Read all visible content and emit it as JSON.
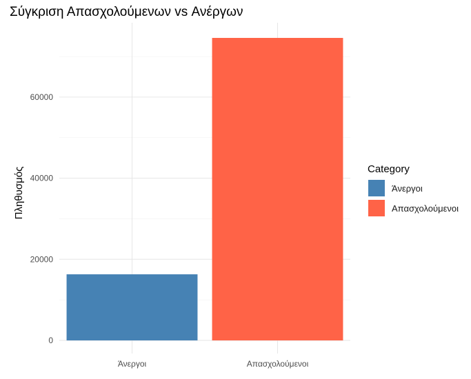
{
  "chart_data": {
    "type": "bar",
    "title": "Σύγκριση Απασχολούμενων vs Ανέργων",
    "xlabel": "",
    "ylabel": "Πληθυσμός",
    "categories": [
      "Άνεργοι",
      "Απασχολούμενοι"
    ],
    "values": [
      16300,
      74600
    ],
    "colors": [
      "#4682B4",
      "#FF6347"
    ],
    "ylim": [
      0,
      78000
    ],
    "yticks": [
      0,
      20000,
      40000,
      60000
    ],
    "ytick_labels": [
      "0",
      "20000",
      "40000",
      "60000"
    ],
    "grid": true,
    "legend": {
      "title": "Category",
      "position": "right",
      "entries": [
        "Άνεργοι",
        "Απασχολούμενοι"
      ]
    }
  }
}
